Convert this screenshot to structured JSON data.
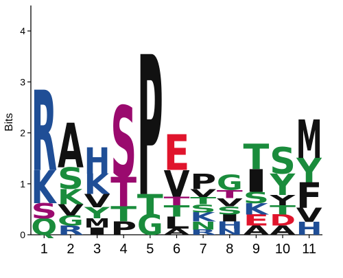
{
  "chart_data": {
    "type": "sequence-logo",
    "ylabel": "Bits",
    "ylim": [
      0,
      4.5
    ],
    "yticks": [
      0,
      1,
      2,
      3,
      4
    ],
    "grid": false,
    "color_scheme": {
      "basic": "#1f4e96",
      "polar": "#1a8c3c",
      "hydrophobic": "#111111",
      "acidic": "#e0142c",
      "special": "#9a0a6e"
    },
    "positions": [
      {
        "label": "1",
        "stack": [
          {
            "letter": "Q",
            "bits": 0.32,
            "color": "#1a8c3c"
          },
          {
            "letter": "S",
            "bits": 0.3,
            "color": "#9a0a6e"
          },
          {
            "letter": "K",
            "bits": 0.65,
            "color": "#1f4e96"
          },
          {
            "letter": "R",
            "bits": 1.58,
            "color": "#1f4e96"
          }
        ]
      },
      {
        "label": "2",
        "stack": [
          {
            "letter": "R",
            "bits": 0.18,
            "color": "#1f4e96"
          },
          {
            "letter": "G",
            "bits": 0.2,
            "color": "#1a8c3c"
          },
          {
            "letter": "V",
            "bits": 0.22,
            "color": "#111111"
          },
          {
            "letter": "K",
            "bits": 0.3,
            "color": "#1a8c3c"
          },
          {
            "letter": "S",
            "bits": 0.42,
            "color": "#1a8c3c"
          },
          {
            "letter": "A",
            "bits": 0.88,
            "color": "#111111"
          }
        ]
      },
      {
        "label": "3",
        "stack": [
          {
            "letter": "I",
            "bits": 0.14,
            "color": "#111111"
          },
          {
            "letter": "M",
            "bits": 0.18,
            "color": "#111111"
          },
          {
            "letter": "Y",
            "bits": 0.22,
            "color": "#1a8c3c"
          },
          {
            "letter": "V",
            "bits": 0.26,
            "color": "#111111"
          },
          {
            "letter": "K",
            "bits": 0.4,
            "color": "#1f4e96"
          },
          {
            "letter": "H",
            "bits": 0.52,
            "color": "#1f4e96"
          }
        ]
      },
      {
        "label": "4",
        "stack": [
          {
            "letter": "P",
            "bits": 0.26,
            "color": "#111111"
          },
          {
            "letter": "T",
            "bits": 0.3,
            "color": "#1a8c3c"
          },
          {
            "letter": "T",
            "bits": 0.58,
            "color": "#9a0a6e"
          },
          {
            "letter": "S",
            "bits": 1.4,
            "color": "#9a0a6e"
          }
        ]
      },
      {
        "label": "5",
        "stack": [
          {
            "letter": "G",
            "bits": 0.4,
            "color": "#1a8c3c"
          },
          {
            "letter": "T",
            "bits": 0.4,
            "color": "#1a8c3c"
          },
          {
            "letter": "P",
            "bits": 2.75,
            "color": "#111111"
          }
        ]
      },
      {
        "label": "6",
        "stack": [
          {
            "letter": "A",
            "bits": 0.12,
            "color": "#111111"
          },
          {
            "letter": "L",
            "bits": 0.24,
            "color": "#111111"
          },
          {
            "letter": "T",
            "bits": 0.22,
            "color": "#1a8c3c"
          },
          {
            "letter": "T",
            "bits": 0.17,
            "color": "#9a0a6e"
          },
          {
            "letter": "V",
            "bits": 0.52,
            "color": "#111111"
          },
          {
            "letter": "E",
            "bits": 0.7,
            "color": "#e0142c"
          }
        ]
      },
      {
        "label": "7",
        "stack": [
          {
            "letter": "R",
            "bits": 0.1,
            "color": "#1f4e96"
          },
          {
            "letter": "N",
            "bits": 0.16,
            "color": "#1a8c3c"
          },
          {
            "letter": "K",
            "bits": 0.18,
            "color": "#1f4e96"
          },
          {
            "letter": "S",
            "bits": 0.16,
            "color": "#1a8c3c"
          },
          {
            "letter": "T",
            "bits": 0.14,
            "color": "#1a8c3c"
          },
          {
            "letter": "V",
            "bits": 0.16,
            "color": "#111111"
          },
          {
            "letter": "P",
            "bits": 0.3,
            "color": "#111111"
          }
        ]
      },
      {
        "label": "8",
        "stack": [
          {
            "letter": "N",
            "bits": 0.12,
            "color": "#1f4e96"
          },
          {
            "letter": "H",
            "bits": 0.14,
            "color": "#1f4e96"
          },
          {
            "letter": "I",
            "bits": 0.14,
            "color": "#111111"
          },
          {
            "letter": "S",
            "bits": 0.16,
            "color": "#1a8c3c"
          },
          {
            "letter": "V",
            "bits": 0.16,
            "color": "#111111"
          },
          {
            "letter": "T",
            "bits": 0.16,
            "color": "#9a0a6e"
          },
          {
            "letter": "G",
            "bits": 0.3,
            "color": "#1a8c3c"
          }
        ]
      },
      {
        "label": "9",
        "stack": [
          {
            "letter": "A",
            "bits": 0.18,
            "color": "#111111"
          },
          {
            "letter": "E",
            "bits": 0.22,
            "color": "#e0142c"
          },
          {
            "letter": "K",
            "bits": 0.22,
            "color": "#1f4e96"
          },
          {
            "letter": "S",
            "bits": 0.22,
            "color": "#1a8c3c"
          },
          {
            "letter": "I",
            "bits": 0.45,
            "color": "#111111"
          },
          {
            "letter": "T",
            "bits": 0.5,
            "color": "#1a8c3c"
          }
        ]
      },
      {
        "label": "10",
        "stack": [
          {
            "letter": "A",
            "bits": 0.18,
            "color": "#111111"
          },
          {
            "letter": "D",
            "bits": 0.22,
            "color": "#e0142c"
          },
          {
            "letter": "T",
            "bits": 0.18,
            "color": "#1a8c3c"
          },
          {
            "letter": "Y",
            "bits": 0.2,
            "color": "#111111"
          },
          {
            "letter": "Y",
            "bits": 0.42,
            "color": "#1a8c3c"
          },
          {
            "letter": "S",
            "bits": 0.52,
            "color": "#1a8c3c"
          }
        ]
      },
      {
        "label": "11",
        "stack": [
          {
            "letter": "H",
            "bits": 0.25,
            "color": "#1f4e96"
          },
          {
            "letter": "V",
            "bits": 0.28,
            "color": "#111111"
          },
          {
            "letter": "F",
            "bits": 0.5,
            "color": "#111111"
          },
          {
            "letter": "Y",
            "bits": 0.48,
            "color": "#1a8c3c"
          },
          {
            "letter": "M",
            "bits": 0.75,
            "color": "#111111"
          }
        ]
      }
    ]
  }
}
